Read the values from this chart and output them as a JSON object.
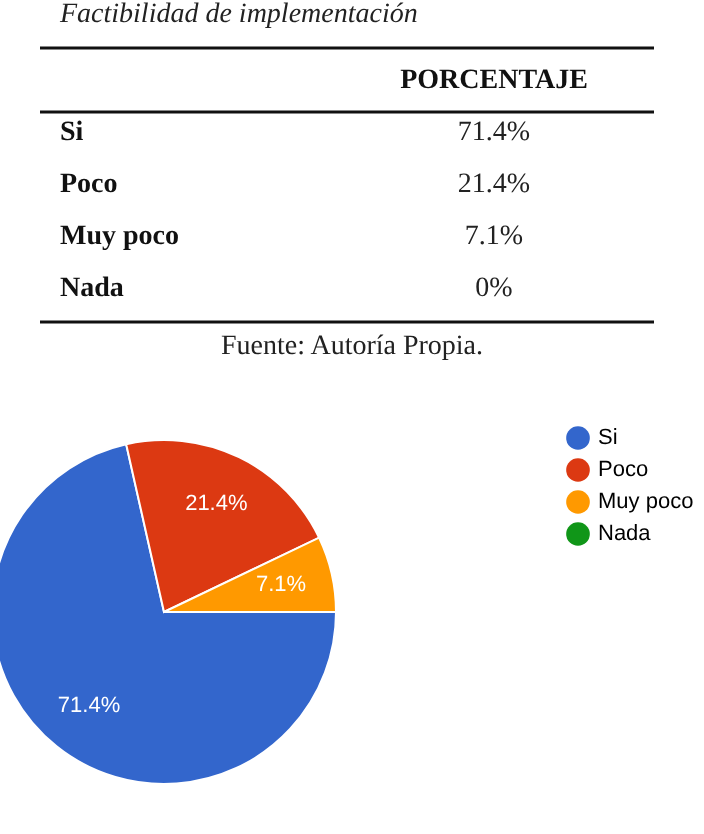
{
  "chart_data": {
    "type": "pie",
    "title": "Factibilidad de implementación",
    "legend_title": "PORCENTAJE",
    "categories": [
      "Si",
      "Poco",
      "Muy poco",
      "Nada"
    ],
    "values": [
      71.4,
      21.4,
      7.1,
      0
    ],
    "value_labels": [
      "71.4%",
      "21.4%",
      "7.1%",
      "0%"
    ],
    "colors": [
      "#3366cc",
      "#dc3912",
      "#ff9900",
      "#109618"
    ],
    "legend": "right",
    "annotations": [
      "Fuente: Autoría Propia."
    ]
  }
}
